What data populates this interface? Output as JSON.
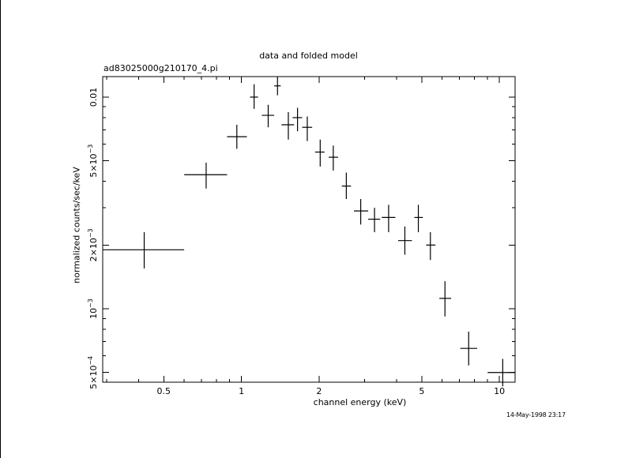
{
  "chart_data": {
    "type": "scatter",
    "title": "data and folded model",
    "subtitle": "ad83025000g210170_4.pi",
    "xlabel": "channel energy (keV)",
    "ylabel": "normalized counts/sec/keV",
    "xscale": "log",
    "yscale": "log",
    "xlim": [
      0.29,
      11.5
    ],
    "ylim": [
      0.00045,
      0.0125
    ],
    "x_ticks": [
      {
        "value": 0.5,
        "label": "0.5"
      },
      {
        "value": 1,
        "label": "1"
      },
      {
        "value": 2,
        "label": "2"
      },
      {
        "value": 5,
        "label": "5"
      },
      {
        "value": 10,
        "label": "10"
      }
    ],
    "y_ticks": [
      {
        "value": 0.0005,
        "mant": "5×10",
        "exp": "−4"
      },
      {
        "value": 0.001,
        "mant": "10",
        "exp": "−3"
      },
      {
        "value": 0.002,
        "mant": "2×10",
        "exp": "−3"
      },
      {
        "value": 0.005,
        "mant": "5×10",
        "exp": "−3"
      },
      {
        "value": 0.01,
        "mant": "0.01",
        "exp": ""
      }
    ],
    "points": [
      {
        "x": 0.42,
        "xlo": 0.29,
        "xhi": 0.6,
        "y": 0.0019,
        "ylo": 0.00155,
        "yhi": 0.0023
      },
      {
        "x": 0.73,
        "xlo": 0.6,
        "xhi": 0.88,
        "y": 0.0043,
        "ylo": 0.0037,
        "yhi": 0.0049
      },
      {
        "x": 0.96,
        "xlo": 0.88,
        "xhi": 1.05,
        "y": 0.0065,
        "ylo": 0.0057,
        "yhi": 0.0074
      },
      {
        "x": 1.12,
        "xlo": 1.08,
        "xhi": 1.16,
        "y": 0.01,
        "ylo": 0.0088,
        "yhi": 0.0115
      },
      {
        "x": 1.27,
        "xlo": 1.2,
        "xhi": 1.34,
        "y": 0.0082,
        "ylo": 0.0072,
        "yhi": 0.0092
      },
      {
        "x": 1.38,
        "xlo": 1.34,
        "xhi": 1.42,
        "y": 0.0113,
        "ylo": 0.0102,
        "yhi": 0.0125
      },
      {
        "x": 1.52,
        "xlo": 1.43,
        "xhi": 1.6,
        "y": 0.0074,
        "ylo": 0.0063,
        "yhi": 0.0085
      },
      {
        "x": 1.65,
        "xlo": 1.58,
        "xhi": 1.72,
        "y": 0.008,
        "ylo": 0.0069,
        "yhi": 0.0089
      },
      {
        "x": 1.8,
        "xlo": 1.72,
        "xhi": 1.88,
        "y": 0.0072,
        "ylo": 0.0062,
        "yhi": 0.0081
      },
      {
        "x": 2.02,
        "xlo": 1.93,
        "xhi": 2.1,
        "y": 0.0055,
        "ylo": 0.0047,
        "yhi": 0.0063
      },
      {
        "x": 2.27,
        "xlo": 2.18,
        "xhi": 2.37,
        "y": 0.0052,
        "ylo": 0.0045,
        "yhi": 0.0059
      },
      {
        "x": 2.55,
        "xlo": 2.45,
        "xhi": 2.66,
        "y": 0.0038,
        "ylo": 0.0033,
        "yhi": 0.0044
      },
      {
        "x": 2.9,
        "xlo": 2.73,
        "xhi": 3.1,
        "y": 0.0029,
        "ylo": 0.0025,
        "yhi": 0.0033
      },
      {
        "x": 3.28,
        "xlo": 3.1,
        "xhi": 3.45,
        "y": 0.00265,
        "ylo": 0.0023,
        "yhi": 0.003
      },
      {
        "x": 3.72,
        "xlo": 3.5,
        "xhi": 3.95,
        "y": 0.0027,
        "ylo": 0.0023,
        "yhi": 0.0031
      },
      {
        "x": 4.3,
        "xlo": 4.05,
        "xhi": 4.58,
        "y": 0.0021,
        "ylo": 0.0018,
        "yhi": 0.00245
      },
      {
        "x": 4.85,
        "xlo": 4.68,
        "xhi": 5.05,
        "y": 0.0027,
        "ylo": 0.0023,
        "yhi": 0.0031
      },
      {
        "x": 5.4,
        "xlo": 5.2,
        "xhi": 5.65,
        "y": 0.002,
        "ylo": 0.0017,
        "yhi": 0.0023
      },
      {
        "x": 6.15,
        "xlo": 5.85,
        "xhi": 6.5,
        "y": 0.00112,
        "ylo": 0.00092,
        "yhi": 0.00135
      },
      {
        "x": 7.6,
        "xlo": 7.05,
        "xhi": 8.2,
        "y": 0.00065,
        "ylo": 0.00054,
        "yhi": 0.00078
      },
      {
        "x": 10.3,
        "xlo": 9.0,
        "xhi": 11.5,
        "y": 0.0005,
        "ylo": 0.00043,
        "yhi": 0.00058
      }
    ]
  },
  "timestamp": "14-May-1998 23:17"
}
